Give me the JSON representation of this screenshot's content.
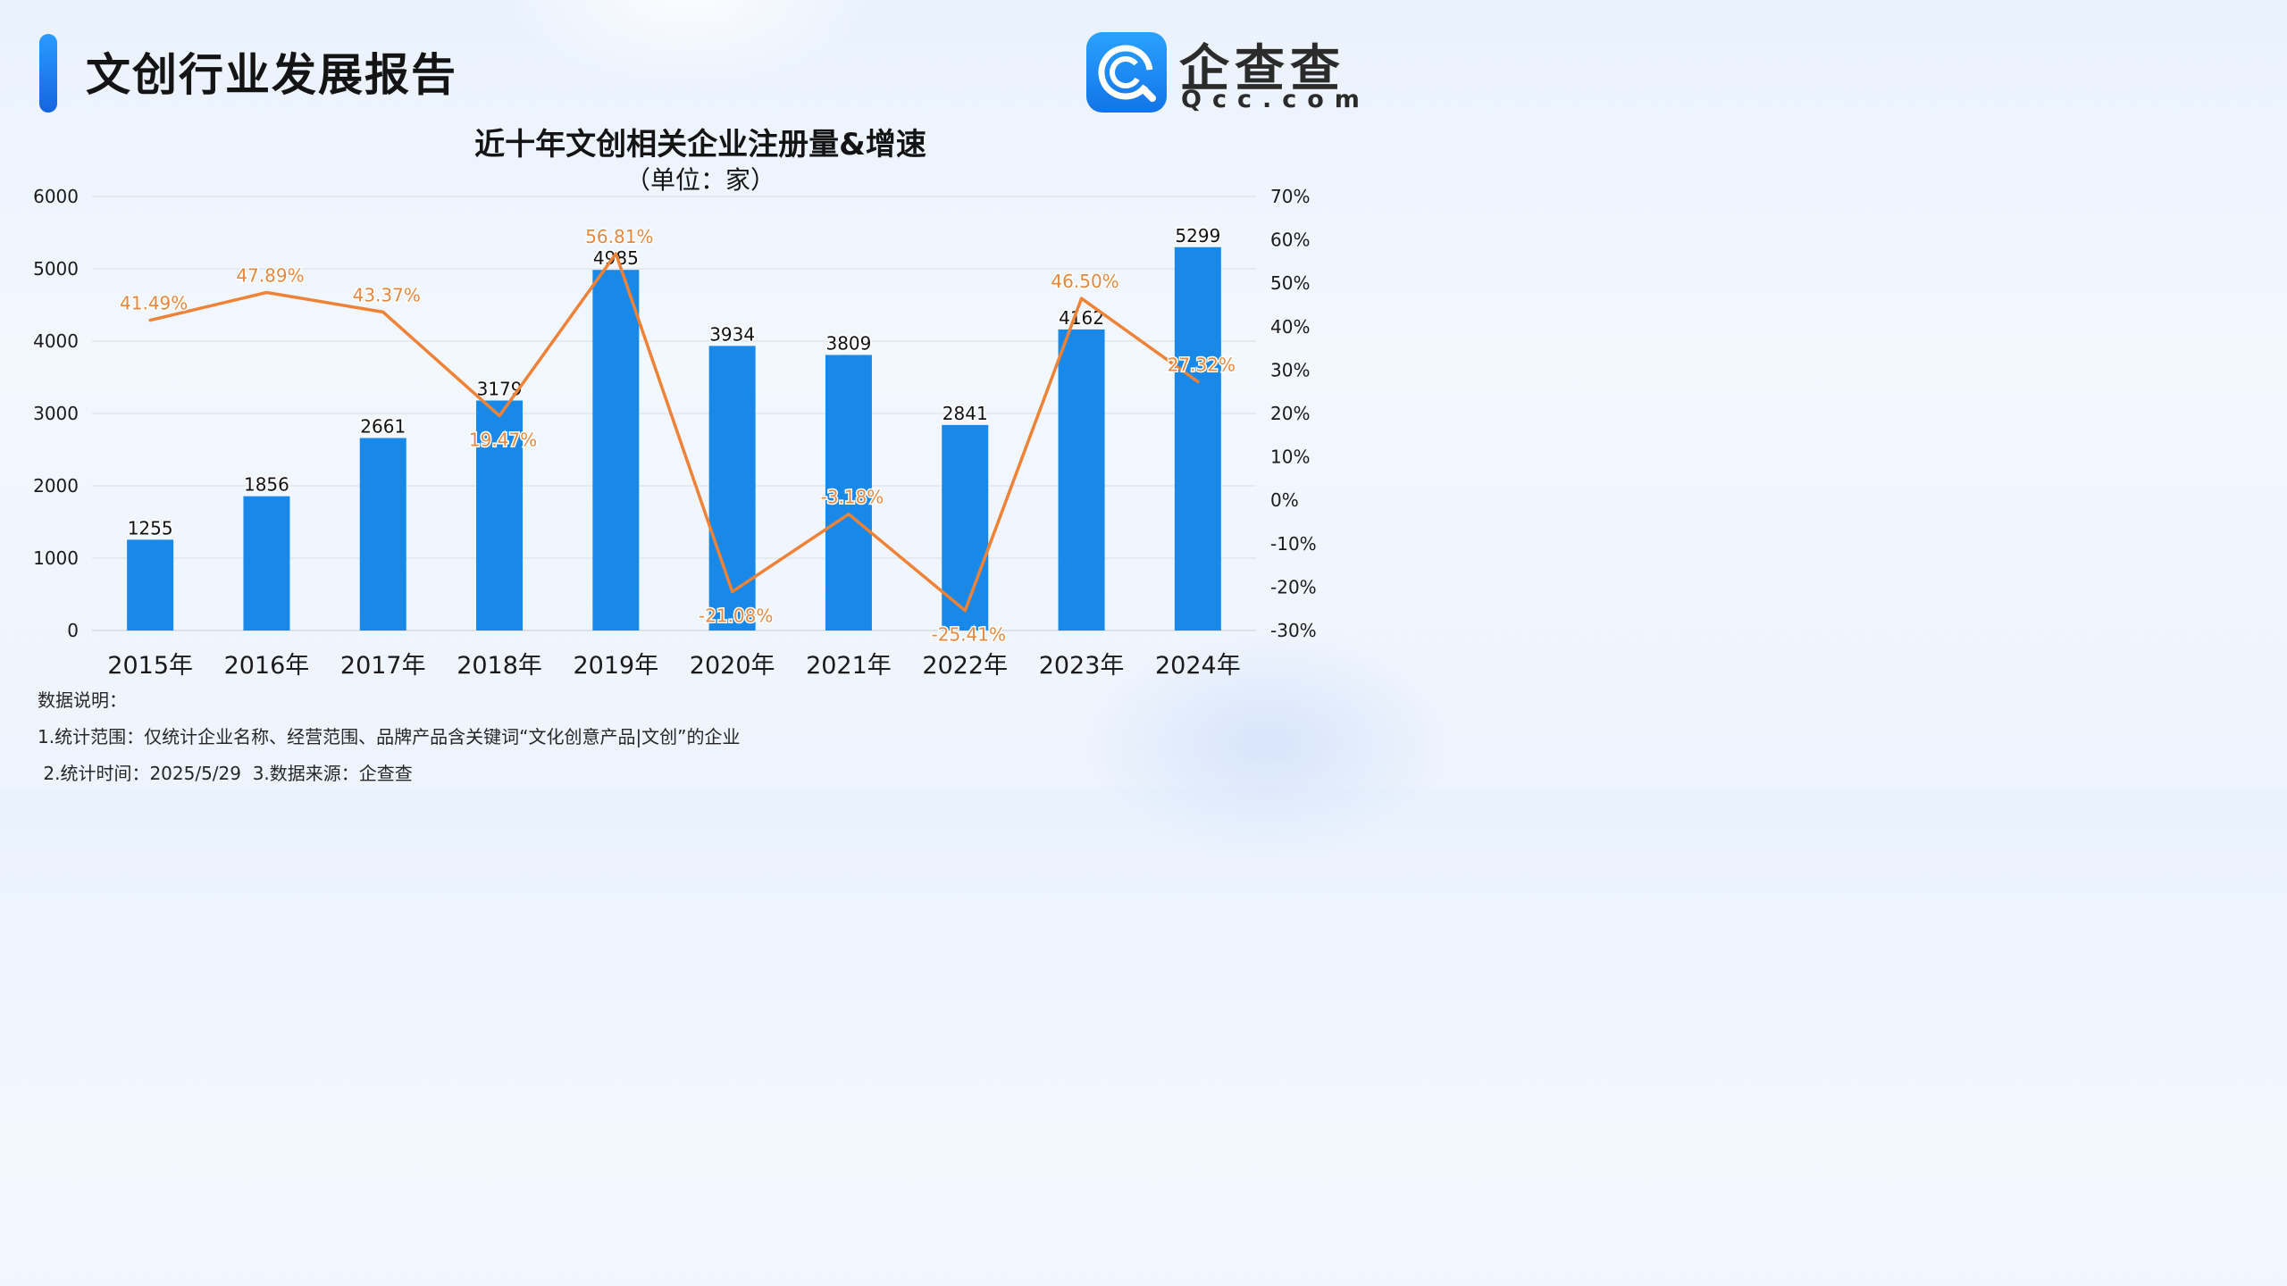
{
  "header": {
    "report_title": "文创行业发展报告",
    "logo": {
      "name": "企查查",
      "domain": "Qcc.com"
    }
  },
  "chart_data": {
    "type": "bar",
    "title": "近十年文创相关企业注册量&增速",
    "subtitle": "（单位：家）",
    "categories": [
      "2015年",
      "2016年",
      "2017年",
      "2018年",
      "2019年",
      "2020年",
      "2021年",
      "2022年",
      "2023年",
      "2024年"
    ],
    "series": [
      {
        "name": "",
        "type": "bar",
        "axis": "left",
        "color": "#1889e9",
        "values": [
          1255,
          1856,
          2661,
          3179,
          4985,
          3934,
          3809,
          2841,
          4162,
          5299
        ]
      },
      {
        "name": "",
        "type": "line",
        "axis": "right",
        "color": "#ee8236",
        "values": [
          41.49,
          47.89,
          43.37,
          19.47,
          56.81,
          -21.08,
          -3.18,
          -25.41,
          46.5,
          27.32
        ],
        "labels": [
          "41.49%",
          "47.89%",
          "43.37%",
          "19.47%",
          "56.81%",
          "-21.08%",
          "-3.18%",
          "-25.41%",
          "46.50%",
          "27.32%"
        ]
      }
    ],
    "y_left": {
      "ylim": [
        0,
        6000
      ],
      "ticks": [
        0,
        1000,
        2000,
        3000,
        4000,
        5000,
        6000
      ]
    },
    "y_right": {
      "ylim": [
        -30,
        70
      ],
      "ticks": [
        "-30%",
        "-20%",
        "-10%",
        "0%",
        "10%",
        "20%",
        "30%",
        "40%",
        "50%",
        "60%",
        "70%"
      ]
    },
    "grid": true,
    "legend": "none"
  },
  "notes": {
    "heading": "数据说明：",
    "line1": "1.统计范围：仅统计企业名称、经营范围、品牌产品含关键词“文化创意产品|文创”的企业",
    "line2": " 2.统计时间：2025/5/29  3.数据来源：企查查"
  }
}
